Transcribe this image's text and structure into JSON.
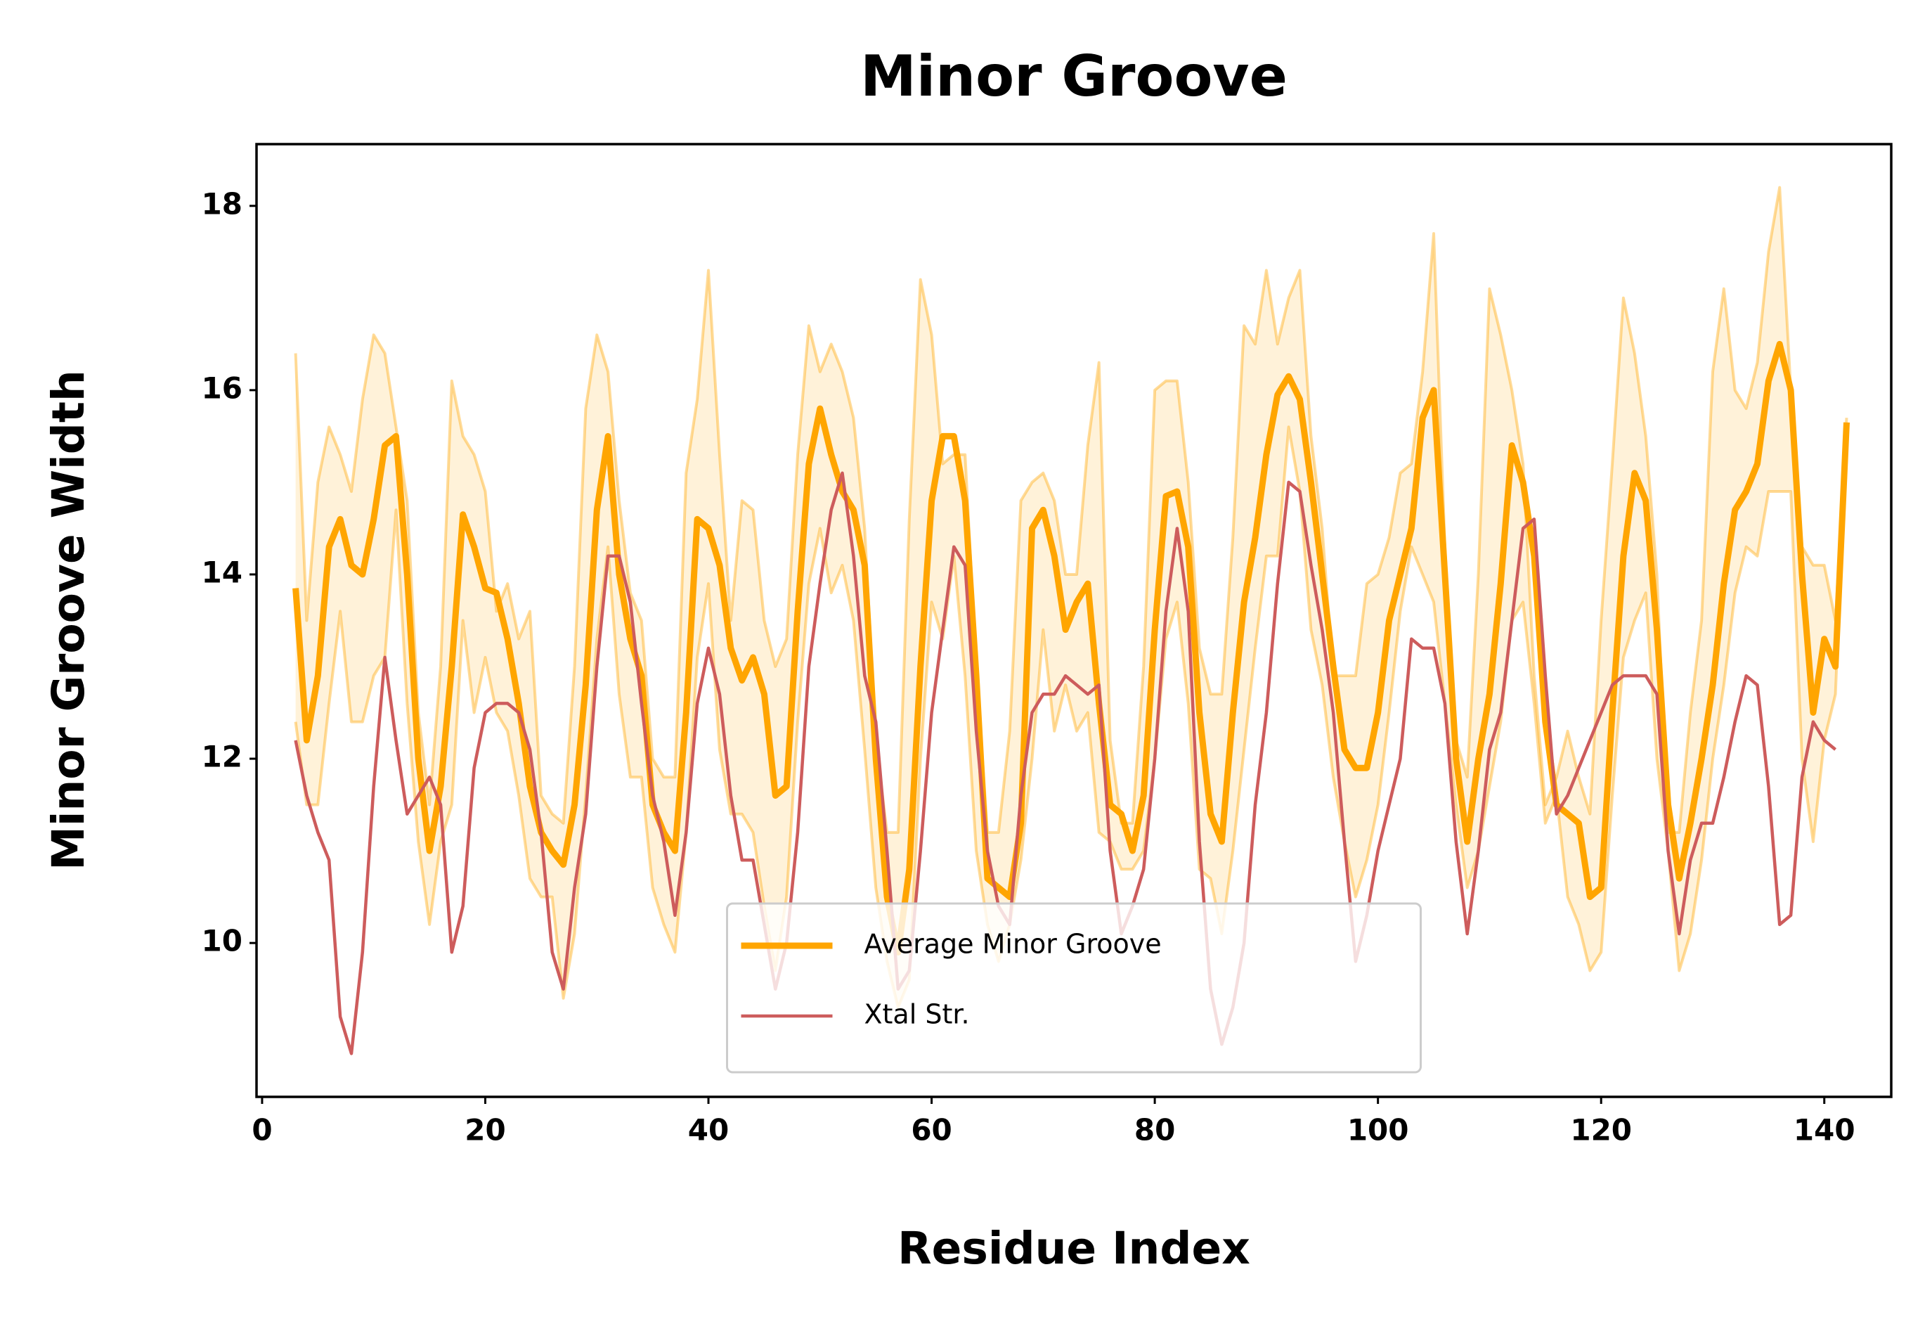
{
  "chart_data": {
    "type": "line",
    "title": "Minor Groove",
    "x_label": "Residue Index",
    "y_label": "Minor Groove Width",
    "x": [
      3,
      4,
      5,
      6,
      7,
      8,
      9,
      10,
      11,
      12,
      13,
      14,
      15,
      16,
      17,
      18,
      19,
      20,
      21,
      22,
      23,
      24,
      25,
      26,
      27,
      28,
      29,
      30,
      31,
      32,
      33,
      34,
      35,
      36,
      37,
      38,
      39,
      40,
      41,
      42,
      43,
      44,
      45,
      46,
      47,
      48,
      49,
      50,
      51,
      52,
      53,
      54,
      55,
      56,
      57,
      58,
      59,
      60,
      61,
      62,
      63,
      64,
      65,
      66,
      67,
      68,
      69,
      70,
      71,
      72,
      73,
      74,
      75,
      76,
      77,
      78,
      79,
      80,
      81,
      82,
      83,
      84,
      85,
      86,
      87,
      88,
      89,
      90,
      91,
      92,
      93,
      94,
      95,
      96,
      97,
      98,
      99,
      100,
      101,
      102,
      103,
      104,
      105,
      106,
      107,
      108,
      109,
      110,
      111,
      112,
      113,
      114,
      115,
      116,
      117,
      118,
      119,
      120,
      121,
      122,
      123,
      124,
      125,
      126,
      127,
      128,
      129,
      130,
      131,
      132,
      133,
      134,
      135,
      136,
      137,
      138,
      139,
      140,
      141,
      142
    ],
    "series": [
      {
        "name": "Average Minor Groove",
        "color": "#ffa500",
        "values": [
          13.85,
          12.2,
          12.9,
          14.3,
          14.6,
          14.1,
          14.0,
          14.6,
          15.4,
          15.5,
          14.0,
          12.0,
          11.0,
          11.7,
          13.0,
          14.65,
          14.3,
          13.85,
          13.8,
          13.3,
          12.6,
          11.7,
          11.2,
          11.0,
          10.85,
          11.5,
          12.8,
          14.7,
          15.5,
          14.0,
          13.3,
          12.9,
          11.5,
          11.2,
          11.0,
          12.5,
          14.6,
          14.5,
          14.1,
          13.2,
          12.85,
          13.1,
          12.7,
          11.6,
          11.7,
          13.6,
          15.2,
          15.8,
          15.3,
          14.9,
          14.7,
          14.1,
          12.0,
          10.5,
          9.9,
          10.8,
          13.0,
          14.8,
          15.5,
          15.5,
          14.8,
          12.9,
          10.7,
          10.6,
          10.5,
          11.3,
          14.5,
          14.7,
          14.2,
          13.4,
          13.7,
          13.9,
          12.6,
          11.5,
          11.4,
          11.0,
          11.6,
          13.4,
          14.85,
          14.9,
          14.3,
          12.5,
          11.4,
          11.1,
          12.5,
          13.7,
          14.4,
          15.3,
          15.95,
          16.15,
          15.9,
          15.0,
          14.0,
          13.0,
          12.1,
          11.9,
          11.9,
          12.5,
          13.5,
          14.0,
          14.5,
          15.7,
          16.0,
          14.0,
          12.0,
          11.1,
          12.0,
          12.7,
          13.9,
          15.4,
          15.0,
          14.2,
          12.4,
          11.5,
          11.4,
          11.3,
          10.5,
          10.6,
          12.5,
          14.2,
          15.1,
          14.8,
          13.4,
          11.5,
          10.7,
          11.3,
          12.0,
          12.8,
          13.9,
          14.7,
          14.9,
          15.2,
          16.1,
          16.5,
          16.0,
          14.0,
          12.5,
          13.3,
          13.0,
          15.65
        ]
      },
      {
        "name": "Xtal Str.",
        "color": "#cd5c5c",
        "values": [
          12.2,
          11.6,
          11.2,
          10.9,
          9.2,
          8.8,
          9.9,
          11.7,
          13.1,
          12.2,
          11.4,
          11.6,
          11.8,
          11.5,
          9.9,
          10.4,
          11.9,
          12.5,
          12.6,
          12.6,
          12.5,
          12.1,
          11.2,
          9.9,
          9.5,
          10.6,
          11.4,
          13.0,
          14.2,
          14.2,
          13.7,
          12.6,
          11.6,
          11.1,
          10.3,
          11.2,
          12.6,
          13.2,
          12.7,
          11.6,
          10.9,
          10.9,
          10.2,
          9.5,
          10.0,
          11.2,
          13.0,
          13.9,
          14.7,
          15.1,
          14.2,
          12.9,
          12.4,
          11.0,
          9.5,
          9.7,
          11.0,
          12.5,
          13.4,
          14.3,
          14.1,
          12.3,
          11.0,
          10.4,
          10.2,
          11.6,
          12.5,
          12.7,
          12.7,
          12.9,
          12.8,
          12.7,
          12.8,
          11.0,
          10.1,
          10.4,
          10.8,
          12.0,
          13.6,
          14.5,
          13.6,
          11.1,
          9.5,
          8.9,
          9.3,
          10.0,
          11.5,
          12.5,
          13.9,
          15.0,
          14.9,
          14.1,
          13.4,
          12.5,
          11.1,
          9.8,
          10.3,
          11.0,
          11.5,
          12.0,
          13.3,
          13.2,
          13.2,
          12.6,
          11.1,
          10.1,
          11.0,
          12.1,
          12.5,
          13.5,
          14.5,
          14.6,
          12.9,
          11.4,
          11.6,
          11.9,
          12.2,
          12.5,
          12.8,
          12.9,
          12.9,
          12.9,
          12.7,
          11.0,
          10.1,
          10.9,
          11.3,
          11.3,
          11.8,
          12.4,
          12.9,
          12.8,
          11.7,
          10.2,
          10.3,
          11.8,
          12.4,
          12.2,
          12.1,
          null
        ]
      }
    ],
    "band": {
      "color": "#ffa500",
      "upper": [
        16.4,
        13.5,
        15.0,
        15.6,
        15.3,
        14.9,
        15.9,
        16.6,
        16.4,
        15.6,
        14.8,
        12.5,
        11.5,
        13.0,
        16.1,
        15.5,
        15.3,
        14.9,
        13.6,
        13.9,
        13.3,
        13.6,
        11.6,
        11.4,
        11.3,
        13.0,
        15.8,
        16.6,
        16.2,
        14.8,
        13.8,
        13.5,
        12.0,
        11.8,
        11.8,
        15.1,
        15.9,
        17.3,
        15.3,
        13.5,
        14.8,
        14.7,
        13.5,
        13.0,
        13.3,
        15.3,
        16.7,
        16.2,
        16.5,
        16.2,
        15.7,
        14.5,
        12.2,
        11.2,
        11.2,
        14.6,
        17.2,
        16.6,
        15.2,
        15.3,
        15.3,
        13.0,
        11.2,
        11.2,
        12.3,
        14.8,
        15.0,
        15.1,
        14.8,
        14.0,
        14.0,
        15.4,
        16.3,
        12.2,
        11.3,
        11.3,
        13.0,
        16.0,
        16.1,
        16.1,
        15.0,
        13.2,
        12.7,
        12.7,
        14.4,
        16.7,
        16.5,
        17.3,
        16.5,
        17.0,
        17.3,
        15.5,
        14.5,
        12.9,
        12.9,
        12.9,
        13.9,
        14.0,
        14.4,
        15.1,
        15.2,
        16.2,
        17.7,
        14.3,
        12.2,
        11.8,
        14.0,
        17.1,
        16.6,
        16.0,
        15.2,
        12.9,
        11.5,
        11.8,
        12.3,
        11.8,
        11.4,
        13.5,
        15.2,
        17.0,
        16.4,
        15.5,
        14.0,
        11.2,
        11.2,
        12.5,
        13.5,
        16.2,
        17.1,
        16.0,
        15.8,
        16.3,
        17.5,
        18.2,
        16.0,
        14.3,
        14.1,
        14.1,
        13.5,
        15.7
      ],
      "lower": [
        12.4,
        11.5,
        11.5,
        12.6,
        13.6,
        12.4,
        12.4,
        12.9,
        13.1,
        14.7,
        12.6,
        11.1,
        10.2,
        11.1,
        11.5,
        13.5,
        12.5,
        13.1,
        12.5,
        12.3,
        11.6,
        10.7,
        10.5,
        10.5,
        9.4,
        10.1,
        11.6,
        13.3,
        14.3,
        12.7,
        11.8,
        11.8,
        10.6,
        10.2,
        9.9,
        11.2,
        13.1,
        13.9,
        12.1,
        11.4,
        11.4,
        11.2,
        10.4,
        9.7,
        10.5,
        12.4,
        13.9,
        14.5,
        13.8,
        14.1,
        13.5,
        12.1,
        10.6,
        9.8,
        9.3,
        9.6,
        12.0,
        13.7,
        13.3,
        14.2,
        12.9,
        11.0,
        10.2,
        9.8,
        10.2,
        10.9,
        12.0,
        13.4,
        12.3,
        12.8,
        12.3,
        12.5,
        11.2,
        11.1,
        10.8,
        10.8,
        11.0,
        12.0,
        13.3,
        13.7,
        12.6,
        10.8,
        10.7,
        10.1,
        11.0,
        12.1,
        13.2,
        14.2,
        14.2,
        15.6,
        14.9,
        13.4,
        12.8,
        11.8,
        11.1,
        10.5,
        10.9,
        11.5,
        12.5,
        13.6,
        14.3,
        14.0,
        13.7,
        12.6,
        11.5,
        10.6,
        11.0,
        11.7,
        12.4,
        13.5,
        13.7,
        12.6,
        11.3,
        11.6,
        10.5,
        10.2,
        9.7,
        9.9,
        11.6,
        13.1,
        13.5,
        13.8,
        12.0,
        11.0,
        9.7,
        10.1,
        10.9,
        12.0,
        12.8,
        13.8,
        14.3,
        14.2,
        14.9,
        14.9,
        14.9,
        12.0,
        11.1,
        12.2,
        12.7,
        15.6
      ]
    },
    "xlim": [
      -0.5,
      146
    ],
    "ylim": [
      8.33,
      18.67
    ],
    "xticks": [
      0,
      20,
      40,
      60,
      80,
      100,
      120,
      140
    ],
    "yticks": [
      10,
      12,
      14,
      16,
      18
    ],
    "grid": false,
    "legend_loc": "lower center"
  }
}
